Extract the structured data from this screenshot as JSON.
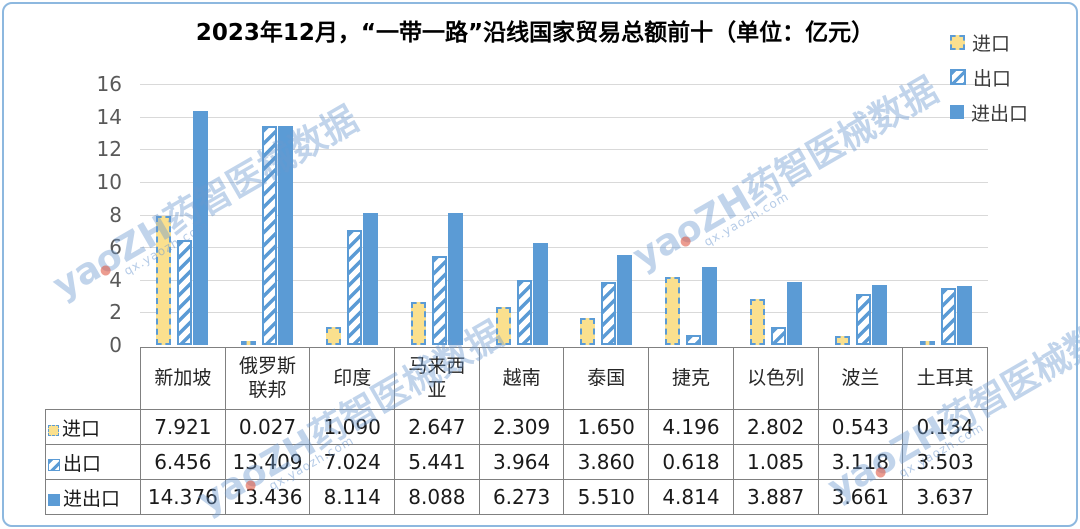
{
  "title": "2023年12月，“一带一路”沿线国家贸易总额前十（单位：亿元）",
  "legend": {
    "items": [
      {
        "label": "进口",
        "swatch": "import"
      },
      {
        "label": "出口",
        "swatch": "export"
      },
      {
        "label": "进出口",
        "swatch": "total"
      }
    ]
  },
  "watermark": {
    "text": "yaoZH药智医械数据",
    "subtext": "qx.yaozh.com"
  },
  "colors": {
    "series_blue": "#5B9BD5",
    "import_yellow": "#FAE08E",
    "gridline": "#D9D9D9",
    "axis_text": "#595959",
    "table_border": "#808080",
    "frame_border": "#8DB8DF",
    "watermark_blue": "#6B98D0"
  },
  "chart_data": {
    "type": "bar",
    "title": "2023年12月，“一带一路”沿线国家贸易总额前十（单位：亿元）",
    "categories": [
      "新加坡",
      "俄罗斯联邦",
      "印度",
      "马来西亚",
      "越南",
      "泰国",
      "捷克",
      "以色列",
      "波兰",
      "土耳其"
    ],
    "series": [
      {
        "name": "进口",
        "values": [
          7.921,
          0.027,
          1.09,
          2.647,
          2.309,
          1.65,
          4.196,
          2.802,
          0.543,
          0.134
        ]
      },
      {
        "name": "出口",
        "values": [
          6.456,
          13.409,
          7.024,
          5.441,
          3.964,
          3.86,
          0.618,
          1.085,
          3.118,
          3.503
        ]
      },
      {
        "name": "进出口",
        "values": [
          14.376,
          13.436,
          8.114,
          8.088,
          6.273,
          5.51,
          4.814,
          3.887,
          3.661,
          3.637
        ]
      }
    ],
    "xlabel": "",
    "ylabel": "",
    "ylim": [
      0,
      16
    ],
    "ytick_step": 2,
    "grid": true,
    "legend_position": "top-right",
    "value_decimals": 3
  }
}
